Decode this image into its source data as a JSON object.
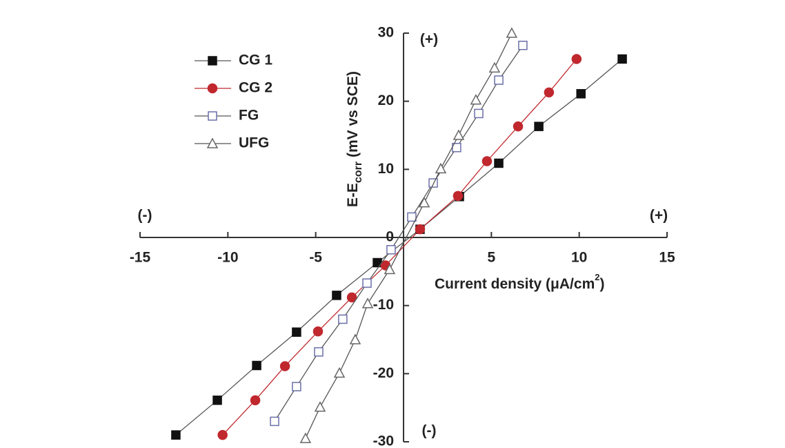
{
  "chart_data": {
    "type": "scatter",
    "xlabel": [
      "Current density (",
      "μ",
      "A/cm",
      "2",
      ")"
    ],
    "ylabel": [
      "E-E",
      "corr",
      " (mV vs SCE)"
    ],
    "annotations": {
      "x_neg": "(-)",
      "x_pos": "(+)",
      "y_pos": "(+)",
      "y_neg": "(-)"
    },
    "xlim": [
      -15,
      15
    ],
    "ylim": [
      -30,
      30
    ],
    "xticks": [
      -15,
      -10,
      -5,
      0,
      5,
      10,
      15
    ],
    "yticks": [
      -30,
      -20,
      -10,
      0,
      10,
      20,
      30
    ],
    "series": [
      {
        "name": "CG 1",
        "color": "#111111",
        "line_color": "#555555",
        "marker": "square-filled",
        "x": [
          -12.96,
          -10.6,
          -8.36,
          -6.09,
          -3.81,
          -1.49,
          0.94,
          3.18,
          5.42,
          7.7,
          10.1,
          12.45
        ],
        "values": [
          -29.0,
          -23.9,
          -18.8,
          -13.9,
          -8.5,
          -3.7,
          1.2,
          6.0,
          10.9,
          16.3,
          21.1,
          26.2
        ]
      },
      {
        "name": "CG 2",
        "color": "#c0282e",
        "line_color": "#c0282e",
        "marker": "circle-filled",
        "x": [
          -10.3,
          -8.44,
          -6.75,
          -4.87,
          -2.94,
          -1.02,
          0.94,
          3.1,
          4.75,
          6.52,
          8.28,
          9.85
        ],
        "values": [
          -29.0,
          -23.9,
          -18.9,
          -13.8,
          -8.8,
          -4.1,
          1.2,
          6.1,
          11.2,
          16.3,
          21.3,
          26.2
        ]
      },
      {
        "name": "FG",
        "color": "#6a6fa8",
        "line_color": "#555555",
        "marker": "square-open",
        "x": [
          -7.34,
          -6.09,
          -4.83,
          -3.46,
          -2.08,
          -0.71,
          0.47,
          1.69,
          3.02,
          4.28,
          5.42,
          6.79
        ],
        "values": [
          -27.0,
          -21.9,
          -16.8,
          -12.0,
          -6.7,
          -1.8,
          3.0,
          8.0,
          13.2,
          18.2,
          23.1,
          28.2
        ]
      },
      {
        "name": "UFG",
        "color": "#666666",
        "line_color": "#555555",
        "marker": "triangle-open",
        "x": [
          -5.58,
          -4.75,
          -3.65,
          -2.75,
          -2.04,
          -0.79,
          1.18,
          2.12,
          3.14,
          4.12,
          5.18,
          6.16
        ],
        "values": [
          -29.5,
          -24.9,
          -19.9,
          -15.0,
          -9.7,
          -4.7,
          5.1,
          10.1,
          15.0,
          20.2,
          24.9,
          30.0
        ]
      }
    ]
  }
}
